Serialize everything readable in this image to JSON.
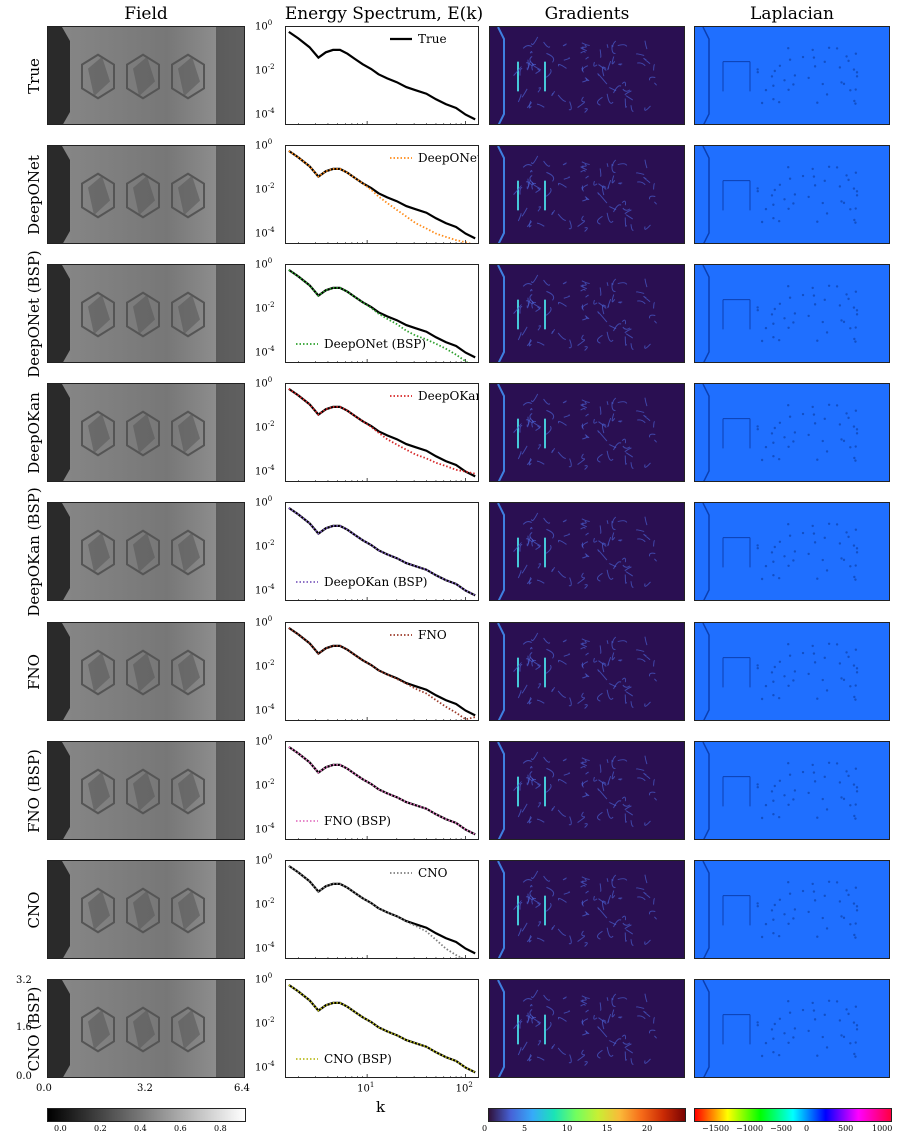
{
  "column_titles": {
    "field": "Field",
    "spectrum": "Energy Spectrum, E(k)",
    "gradients": "Gradients",
    "laplacian": "Laplacian"
  },
  "row_labels": [
    "True",
    "DeepONet",
    "DeepONet (BSP)",
    "DeepOKan",
    "DeepOKan (BSP)",
    "FNO",
    "FNO (BSP)",
    "CNO",
    "CNO (BSP)"
  ],
  "field_axes": {
    "x_ticks": [
      "0.0",
      "3.2",
      "6.4"
    ],
    "y_ticks": [
      "3.2",
      "1.6",
      "0.0"
    ]
  },
  "spectrum_axes": {
    "xlabel": "k",
    "x_ticks": [
      "10^1",
      "10^2"
    ],
    "y_ticks": [
      "10^0",
      "10^-2",
      "10^-4"
    ]
  },
  "colorbars": {
    "field": {
      "ticks": [
        "0.0",
        "0.2",
        "0.4",
        "0.6",
        "0.8"
      ]
    },
    "gradients": {
      "ticks": [
        "0",
        "5",
        "10",
        "15",
        "20"
      ]
    },
    "laplacian": {
      "ticks": [
        "−1500",
        "−1000",
        "−500",
        "0",
        "500",
        "1000"
      ]
    }
  },
  "chart_data": {
    "type": "line",
    "xscale": "log",
    "yscale": "log",
    "xlim": [
      1.5,
      140
    ],
    "ylim": [
      3e-05,
      1
    ],
    "xlabel": "k",
    "reference": {
      "name": "True",
      "color": "#000000",
      "k": [
        1.6,
        2,
        2.6,
        3.2,
        3.8,
        4.5,
        5.3,
        6.3,
        7.5,
        9,
        11,
        13,
        16,
        20,
        25,
        31,
        40,
        50,
        63,
        80,
        100,
        125
      ],
      "E": [
        0.6,
        0.3,
        0.12,
        0.04,
        0.07,
        0.09,
        0.09,
        0.06,
        0.035,
        0.02,
        0.012,
        0.007,
        0.0045,
        0.003,
        0.0018,
        0.0013,
        0.0009,
        0.0005,
        0.0003,
        0.0002,
        0.0001,
        6e-05
      ]
    },
    "series": [
      {
        "name": "DeepONet",
        "color": "#ff8c1a",
        "legend_pos": "top-right",
        "E": [
          0.6,
          0.3,
          0.12,
          0.04,
          0.07,
          0.09,
          0.09,
          0.06,
          0.035,
          0.02,
          0.01,
          0.005,
          0.0025,
          0.0012,
          0.0006,
          0.0003,
          0.00017,
          0.0001,
          7e-05,
          5e-05,
          4e-05,
          3e-05
        ]
      },
      {
        "name": "DeepONet (BSP)",
        "color": "#2ca02c",
        "legend_pos": "bottom-left",
        "E": [
          0.6,
          0.3,
          0.12,
          0.04,
          0.07,
          0.09,
          0.09,
          0.06,
          0.035,
          0.02,
          0.011,
          0.006,
          0.0035,
          0.002,
          0.001,
          0.0006,
          0.0004,
          0.00025,
          0.00015,
          8e-05,
          4e-05,
          2e-05
        ]
      },
      {
        "name": "DeepOKan",
        "color": "#d62728",
        "legend_pos": "top-right",
        "E": [
          0.6,
          0.3,
          0.12,
          0.04,
          0.07,
          0.09,
          0.09,
          0.06,
          0.035,
          0.02,
          0.011,
          0.006,
          0.003,
          0.0017,
          0.001,
          0.0006,
          0.0004,
          0.00025,
          0.00018,
          0.00012,
          0.0001,
          8e-05
        ]
      },
      {
        "name": "DeepOKan (BSP)",
        "color": "#7f5fbf",
        "legend_pos": "bottom-left",
        "E": [
          0.6,
          0.3,
          0.12,
          0.04,
          0.07,
          0.09,
          0.09,
          0.06,
          0.035,
          0.02,
          0.012,
          0.007,
          0.0045,
          0.003,
          0.0018,
          0.0013,
          0.0009,
          0.0005,
          0.0003,
          0.0002,
          0.0001,
          6e-05
        ]
      },
      {
        "name": "FNO",
        "color": "#9c3b2a",
        "legend_pos": "top-right",
        "E": [
          0.6,
          0.3,
          0.12,
          0.04,
          0.07,
          0.09,
          0.09,
          0.06,
          0.035,
          0.02,
          0.012,
          0.007,
          0.0045,
          0.0028,
          0.0017,
          0.001,
          0.0006,
          0.0003,
          0.00015,
          8e-05,
          4e-05,
          5e-05
        ]
      },
      {
        "name": "FNO (BSP)",
        "color": "#e377c2",
        "legend_pos": "bottom-left",
        "E": [
          0.6,
          0.3,
          0.12,
          0.04,
          0.07,
          0.09,
          0.09,
          0.06,
          0.035,
          0.02,
          0.012,
          0.007,
          0.0045,
          0.003,
          0.0018,
          0.0013,
          0.0009,
          0.0005,
          0.0003,
          0.0002,
          0.0001,
          6e-05
        ]
      },
      {
        "name": "CNO",
        "color": "#7f7f7f",
        "legend_pos": "top-right",
        "E": [
          0.6,
          0.3,
          0.12,
          0.04,
          0.07,
          0.09,
          0.09,
          0.06,
          0.035,
          0.02,
          0.012,
          0.007,
          0.0045,
          0.003,
          0.0017,
          0.0011,
          0.0006,
          0.00025,
          0.0001,
          5e-05,
          3e-05,
          2e-05
        ]
      },
      {
        "name": "CNO (BSP)",
        "color": "#bcbd22",
        "legend_pos": "bottom-left",
        "E": [
          0.6,
          0.3,
          0.12,
          0.04,
          0.07,
          0.09,
          0.09,
          0.06,
          0.035,
          0.02,
          0.012,
          0.007,
          0.0045,
          0.003,
          0.0018,
          0.0013,
          0.0009,
          0.0005,
          0.0003,
          0.0002,
          0.0001,
          6e-05
        ]
      }
    ]
  },
  "colors": {
    "field_bg": "#7a7a7a",
    "gradient_bg": "#2a0f52",
    "laplacian_bg": "#1f6fff"
  }
}
